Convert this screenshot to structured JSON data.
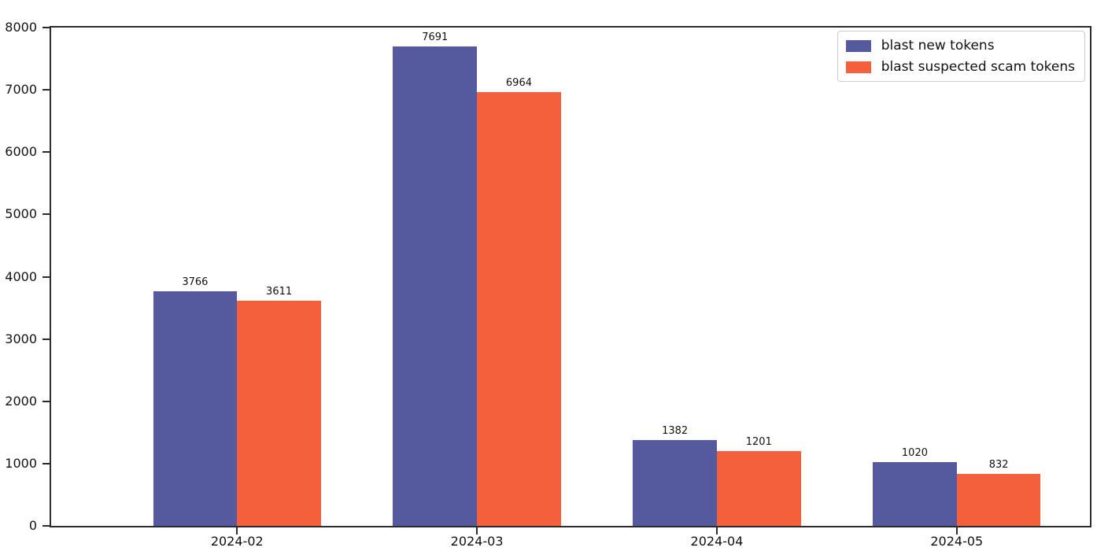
{
  "chart_data": {
    "type": "bar",
    "title": "",
    "xlabel": "",
    "ylabel": "",
    "categories": [
      "2024-02",
      "2024-03",
      "2024-04",
      "2024-05"
    ],
    "series": [
      {
        "name": "blast new tokens",
        "color": "#555a9e",
        "values": [
          3766,
          7691,
          1382,
          1020
        ]
      },
      {
        "name": "blast suspected scam tokens",
        "color": "#f4603c",
        "values": [
          3611,
          6964,
          1201,
          832
        ]
      }
    ],
    "bar_value_labels": [
      [
        "3766",
        "7691",
        "1382",
        "1020"
      ],
      [
        "3611",
        "6964",
        "1201",
        "832"
      ]
    ],
    "ylim": [
      0,
      8000
    ],
    "yticks": [
      "0",
      "1000",
      "2000",
      "3000",
      "4000",
      "5000",
      "6000",
      "7000",
      "8000"
    ],
    "grid": false,
    "legend_position": "upper right",
    "legend_entries": [
      "blast new tokens",
      "blast suspected scam tokens"
    ],
    "colors": {
      "spine": "#2b2b2b",
      "text": "#111111",
      "series_1": "#555a9e",
      "series_2": "#f4603c",
      "background": "#ffffff"
    }
  }
}
